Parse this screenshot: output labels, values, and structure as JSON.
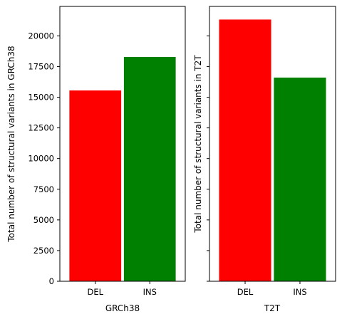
{
  "chart_data": [
    {
      "type": "bar",
      "categories": [
        "DEL",
        "INS"
      ],
      "values": [
        15550,
        18280
      ],
      "colors": [
        "#ff0000",
        "#008000"
      ],
      "xlabel": "GRCh38",
      "ylabel": "Total number of structural variants in GRCh38",
      "ylim": [
        0,
        22400
      ],
      "yticks": [
        "0",
        "2500",
        "5000",
        "7500",
        "10000",
        "12500",
        "15000",
        "17500",
        "20000"
      ],
      "ytick_values": [
        0,
        2500,
        5000,
        7500,
        10000,
        12500,
        15000,
        17500,
        20000
      ],
      "show_ytick_labels": true,
      "grid": false
    },
    {
      "type": "bar",
      "categories": [
        "DEL",
        "INS"
      ],
      "values": [
        21330,
        16600
      ],
      "colors": [
        "#ff0000",
        "#008000"
      ],
      "xlabel": "T2T",
      "ylabel": "Total number of structural variants in T2T",
      "ylim": [
        0,
        22400
      ],
      "yticks": [
        "0",
        "2500",
        "5000",
        "7500",
        "10000",
        "12500",
        "15000",
        "17500",
        "20000"
      ],
      "ytick_values": [
        0,
        2500,
        5000,
        7500,
        10000,
        12500,
        15000,
        17500,
        20000
      ],
      "show_ytick_labels": false,
      "grid": false
    }
  ]
}
